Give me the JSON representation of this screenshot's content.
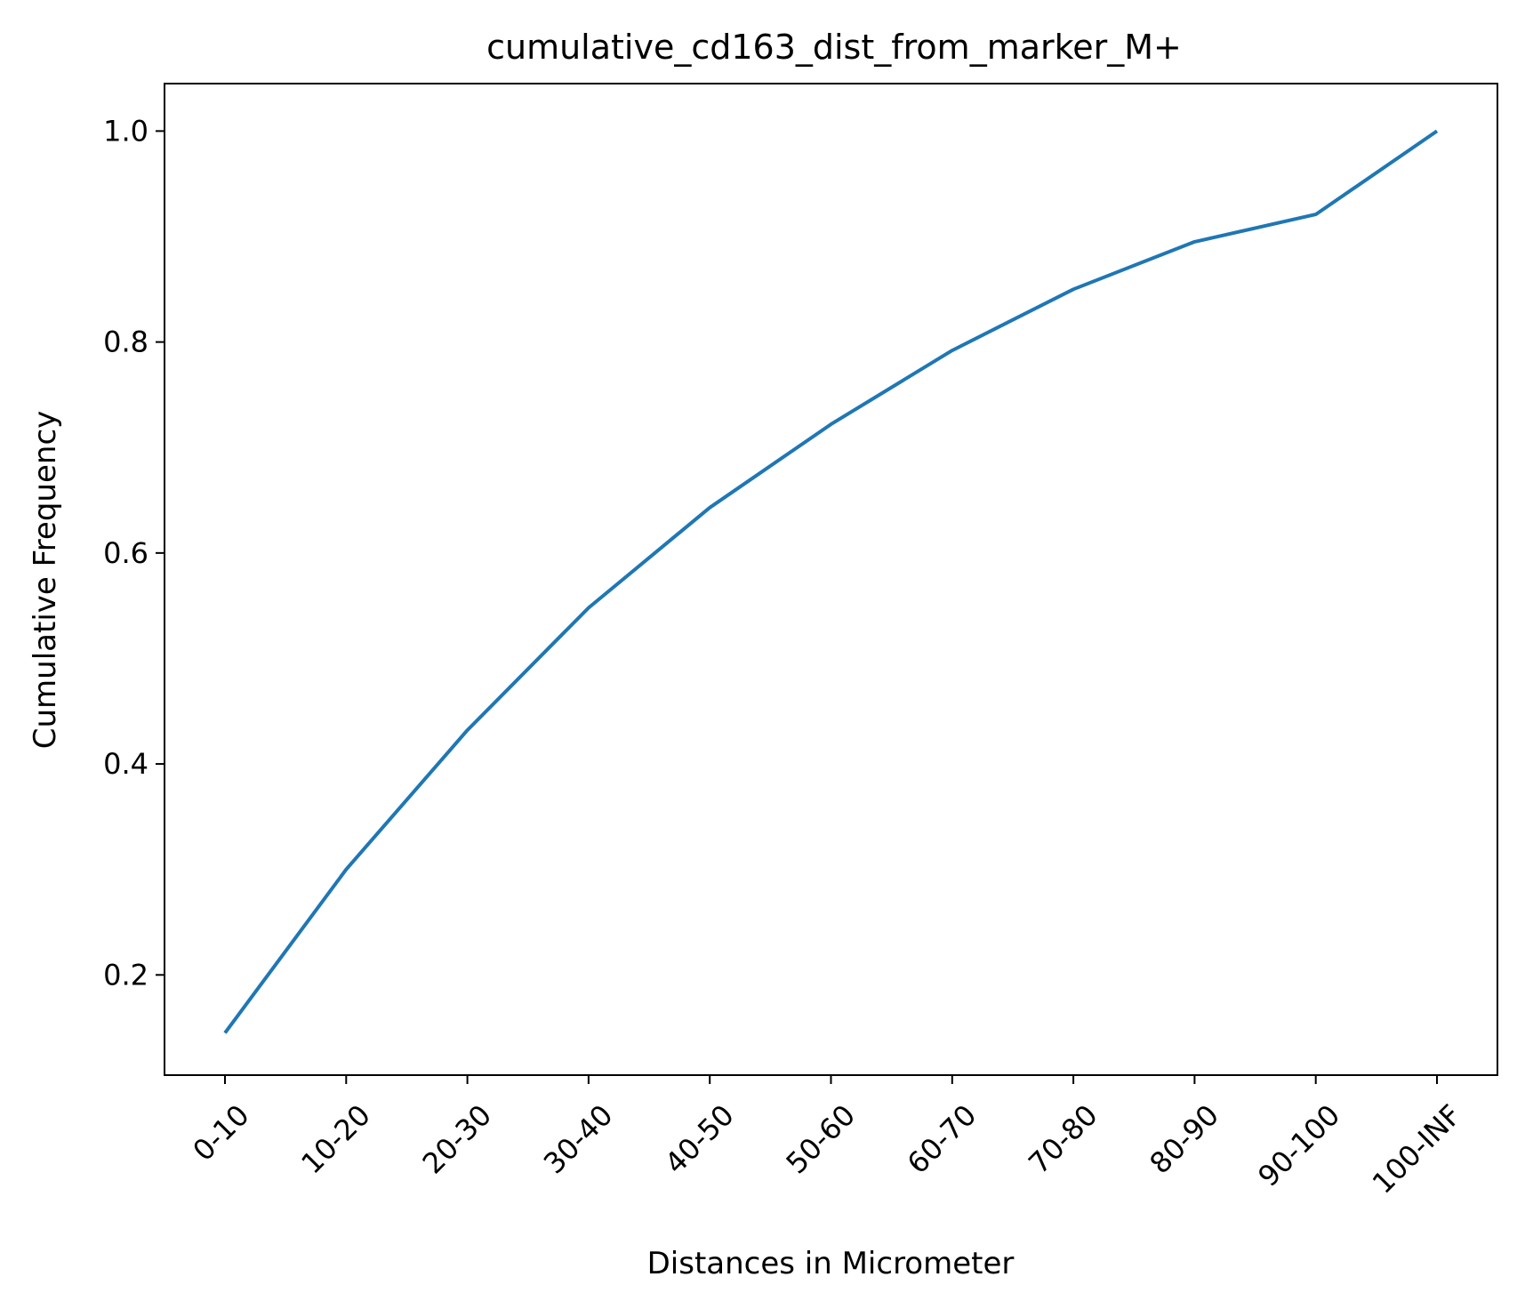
{
  "chart_data": {
    "type": "line",
    "title": "cumulative_cd163_dist_from_marker_M+",
    "xlabel": "Distances in Micrometer",
    "ylabel": "Cumulative Frequency",
    "categories": [
      "0-10",
      "10-20",
      "20-30",
      "30-40",
      "40-50",
      "50-60",
      "60-70",
      "70-80",
      "80-90",
      "90-100",
      "100-INF"
    ],
    "values": [
      0.145,
      0.3,
      0.432,
      0.548,
      0.643,
      0.722,
      0.792,
      0.85,
      0.895,
      0.921,
      1.0
    ],
    "ylim": [
      0.105,
      1.045
    ],
    "yticks": [
      0.2,
      0.4,
      0.6,
      0.8,
      1.0
    ],
    "ytick_labels": [
      "0.2",
      "0.4",
      "0.6",
      "0.8",
      "1.0"
    ],
    "grid": false,
    "legend": false,
    "line_color": "#1f77b4"
  }
}
